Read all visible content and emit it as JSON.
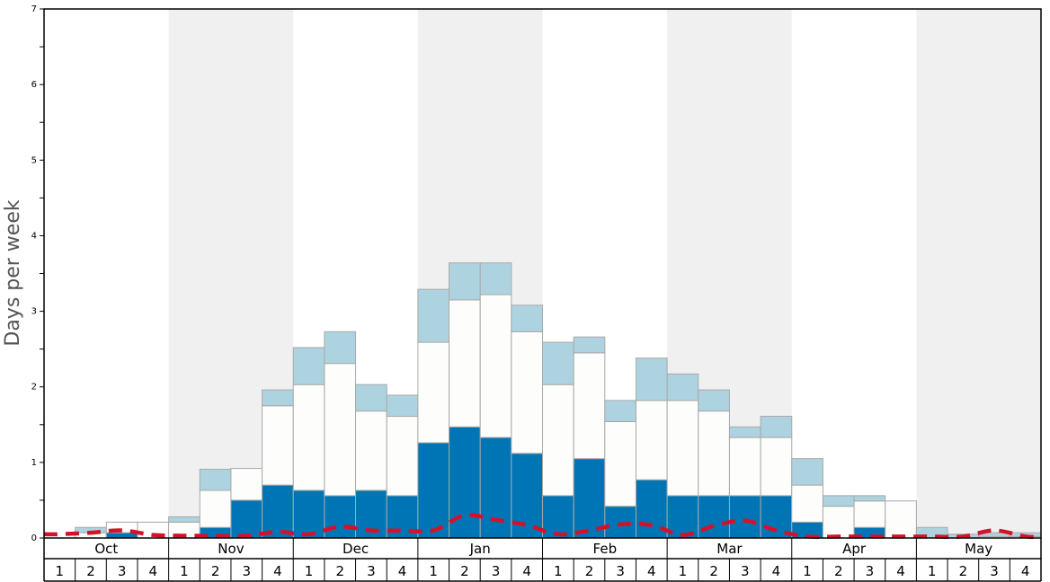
{
  "chart_data": {
    "type": "bar",
    "stacked": true,
    "ylabel": "Days per week",
    "ylim": [
      0,
      7
    ],
    "y_ticks": [
      "0",
      "1",
      "2",
      "3",
      "4",
      "5",
      "6",
      "7"
    ],
    "grid": false,
    "months": [
      "Oct",
      "Nov",
      "Dec",
      "Jan",
      "Feb",
      "Mar",
      "Apr",
      "May"
    ],
    "week_labels": [
      "1",
      "2",
      "3",
      "4"
    ],
    "categories": [
      "Oct 1",
      "Oct 2",
      "Oct 3",
      "Oct 4",
      "Nov 1",
      "Nov 2",
      "Nov 3",
      "Nov 4",
      "Dec 1",
      "Dec 2",
      "Dec 3",
      "Dec 4",
      "Jan 1",
      "Jan 2",
      "Jan 3",
      "Jan 4",
      "Feb 1",
      "Feb 2",
      "Feb 3",
      "Feb 4",
      "Mar 1",
      "Mar 2",
      "Mar 3",
      "Mar 4",
      "Apr 1",
      "Apr 2",
      "Apr 3",
      "Apr 4",
      "May 1",
      "May 2",
      "May 3",
      "May 4"
    ],
    "series": [
      {
        "color": "#0075b5",
        "values": [
          0,
          0,
          0.07,
          0,
          0,
          0.14,
          0.5,
          0.7,
          0.63,
          0.56,
          0.63,
          0.56,
          1.26,
          1.47,
          1.33,
          1.12,
          0.56,
          1.05,
          0.42,
          0.77,
          0.56,
          0.56,
          0.56,
          0.56,
          0.21,
          0,
          0.14,
          0,
          0,
          0,
          0,
          0
        ]
      },
      {
        "color": "#fdfdfb",
        "values": [
          0,
          0.07,
          0.14,
          0.21,
          0.21,
          0.49,
          0.42,
          1.05,
          1.4,
          1.75,
          1.05,
          1.05,
          1.33,
          1.68,
          1.89,
          1.61,
          1.47,
          1.4,
          1.12,
          1.05,
          1.26,
          1.12,
          0.77,
          0.77,
          0.49,
          0.42,
          0.35,
          0.49,
          0,
          0,
          0.02,
          0.02
        ]
      },
      {
        "color": "#aed3e0",
        "values": [
          0,
          0.07,
          0,
          0,
          0.07,
          0.28,
          0,
          0.21,
          0.49,
          0.42,
          0.35,
          0.28,
          0.7,
          0.49,
          0.42,
          0.35,
          0.56,
          0.21,
          0.28,
          0.56,
          0.35,
          0.28,
          0.14,
          0.28,
          0.35,
          0.14,
          0.07,
          0,
          0.14,
          0.05,
          0.05,
          0.05
        ]
      },
      {
        "type": "line",
        "style": "dashed",
        "color": "#d3122a",
        "values": [
          0.05,
          0.07,
          0.1,
          0.04,
          0.03,
          0.03,
          0.03,
          0.08,
          0.05,
          0.15,
          0.1,
          0.1,
          0.1,
          0.3,
          0.24,
          0.17,
          0.05,
          0.1,
          0.18,
          0.17,
          0.04,
          0.16,
          0.23,
          0.1,
          0.02,
          0.02,
          0.02,
          0.02,
          0.02,
          0.02,
          0.1,
          0.02
        ]
      }
    ]
  }
}
